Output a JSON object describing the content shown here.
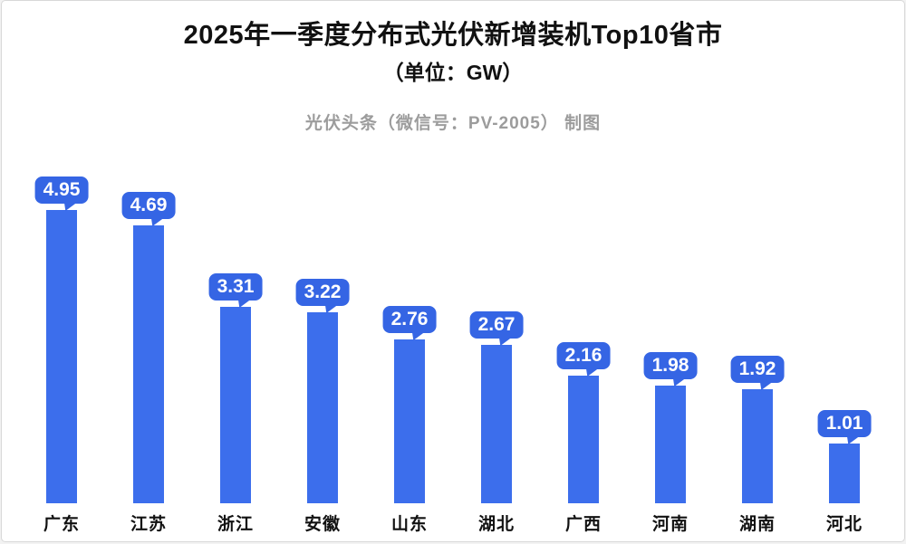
{
  "page": {
    "background_color": "#ffffff",
    "border_color": "#d8d8d8"
  },
  "header": {
    "title": "2025年一季度分布式光伏新增装机Top10省市",
    "subtitle": "（单位：GW）",
    "watermark": "光伏头条（微信号：PV-2005） 制图"
  },
  "chart_data": {
    "type": "bar",
    "title": "2025年一季度分布式光伏新增装机Top10省市",
    "unit": "GW",
    "categories": [
      "广东",
      "江苏",
      "浙江",
      "安徽",
      "山东",
      "湖北",
      "广西",
      "河南",
      "湖南",
      "河北"
    ],
    "values": [
      4.95,
      4.69,
      3.31,
      3.22,
      2.76,
      2.67,
      2.16,
      1.98,
      1.92,
      1.01
    ],
    "xlabel": "",
    "ylabel": "",
    "ylim": [
      0,
      5.5
    ],
    "grid": false,
    "legend": false,
    "data_labels": "bubble-above-bar",
    "bar_color": "#3c6eec",
    "bubble_color": "#3565e4",
    "bubble_text_color": "#ffffff",
    "axis_label_color": "#111111",
    "title_color": "#111111",
    "watermark_color": "#9c9c9c"
  }
}
